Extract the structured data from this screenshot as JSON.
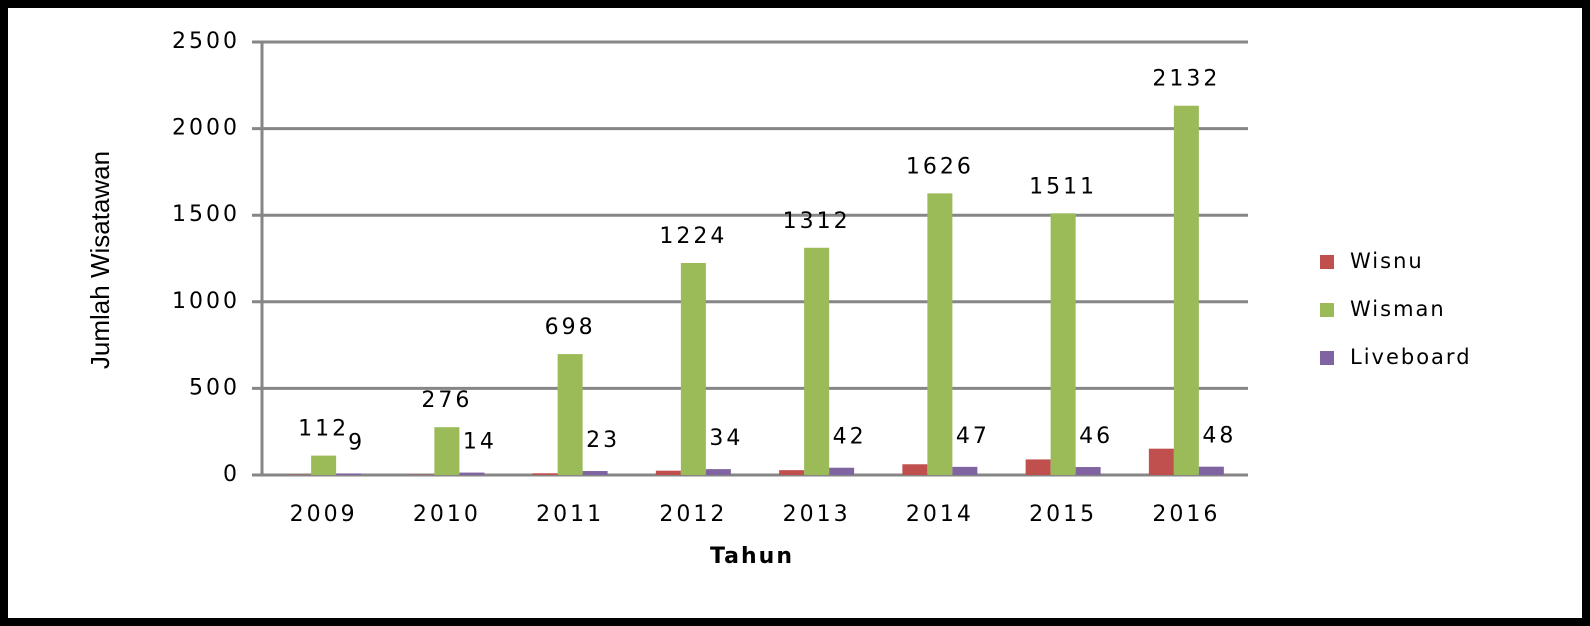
{
  "chart_data": {
    "type": "bar",
    "x_label": "Tahun",
    "y_label": "Jumlah Wisatawan",
    "categories": [
      "2009",
      "2010",
      "2011",
      "2012",
      "2013",
      "2014",
      "2015",
      "2016"
    ],
    "series": [
      {
        "name": "Wisnu",
        "color": "#c0504d",
        "values": [
          2,
          2,
          10,
          25,
          28,
          62,
          90,
          152
        ],
        "data_labels": false
      },
      {
        "name": "Wisman",
        "color": "#9bbb59",
        "values": [
          112,
          276,
          698,
          1224,
          1312,
          1626,
          1511,
          2132
        ],
        "data_labels": true
      },
      {
        "name": "Liveboard",
        "color": "#8064a2",
        "values": [
          9,
          14,
          23,
          34,
          42,
          47,
          46,
          48
        ],
        "data_labels": true
      }
    ],
    "ylim": [
      0,
      2500
    ],
    "yticks": [
      0,
      500,
      1000,
      1500,
      2000,
      2500
    ],
    "grid": true,
    "legend": "right"
  }
}
